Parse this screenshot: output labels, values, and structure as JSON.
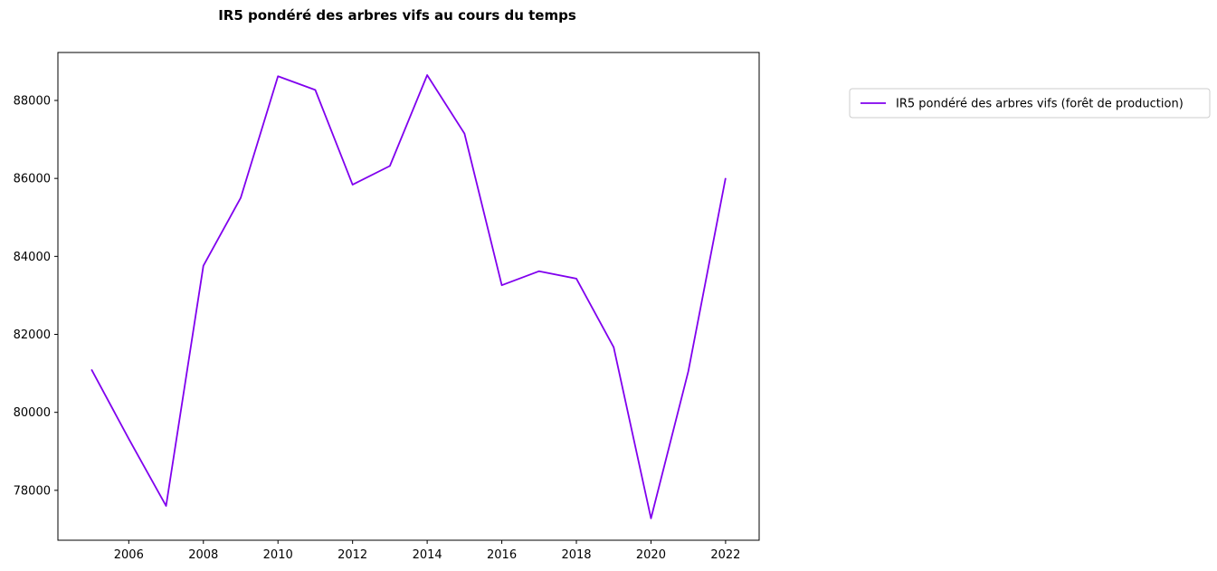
{
  "chart_data": {
    "type": "line",
    "title": "IR5 pondéré des arbres vifs au cours du temps",
    "xlabel": "",
    "ylabel": "",
    "x": [
      2005,
      2006,
      2007,
      2008,
      2009,
      2010,
      2011,
      2012,
      2013,
      2014,
      2015,
      2016,
      2017,
      2018,
      2019,
      2020,
      2021,
      2022
    ],
    "series": [
      {
        "name": "IR5 pondéré des arbres vifs (forêt de production)",
        "color": "#8000ee",
        "values": [
          81100,
          79320,
          77600,
          83760,
          85500,
          88620,
          88270,
          85840,
          86320,
          88650,
          87150,
          83260,
          83620,
          83430,
          81670,
          77280,
          81050,
          86010
        ]
      }
    ],
    "xlim": [
      2004.1,
      2022.9
    ],
    "ylim": [
      76720,
      89230
    ],
    "xticks": [
      2006,
      2008,
      2010,
      2012,
      2014,
      2016,
      2018,
      2020,
      2022
    ],
    "yticks": [
      78000,
      80000,
      82000,
      84000,
      86000,
      88000
    ],
    "grid": false,
    "legend_position": "outside-top-right"
  }
}
